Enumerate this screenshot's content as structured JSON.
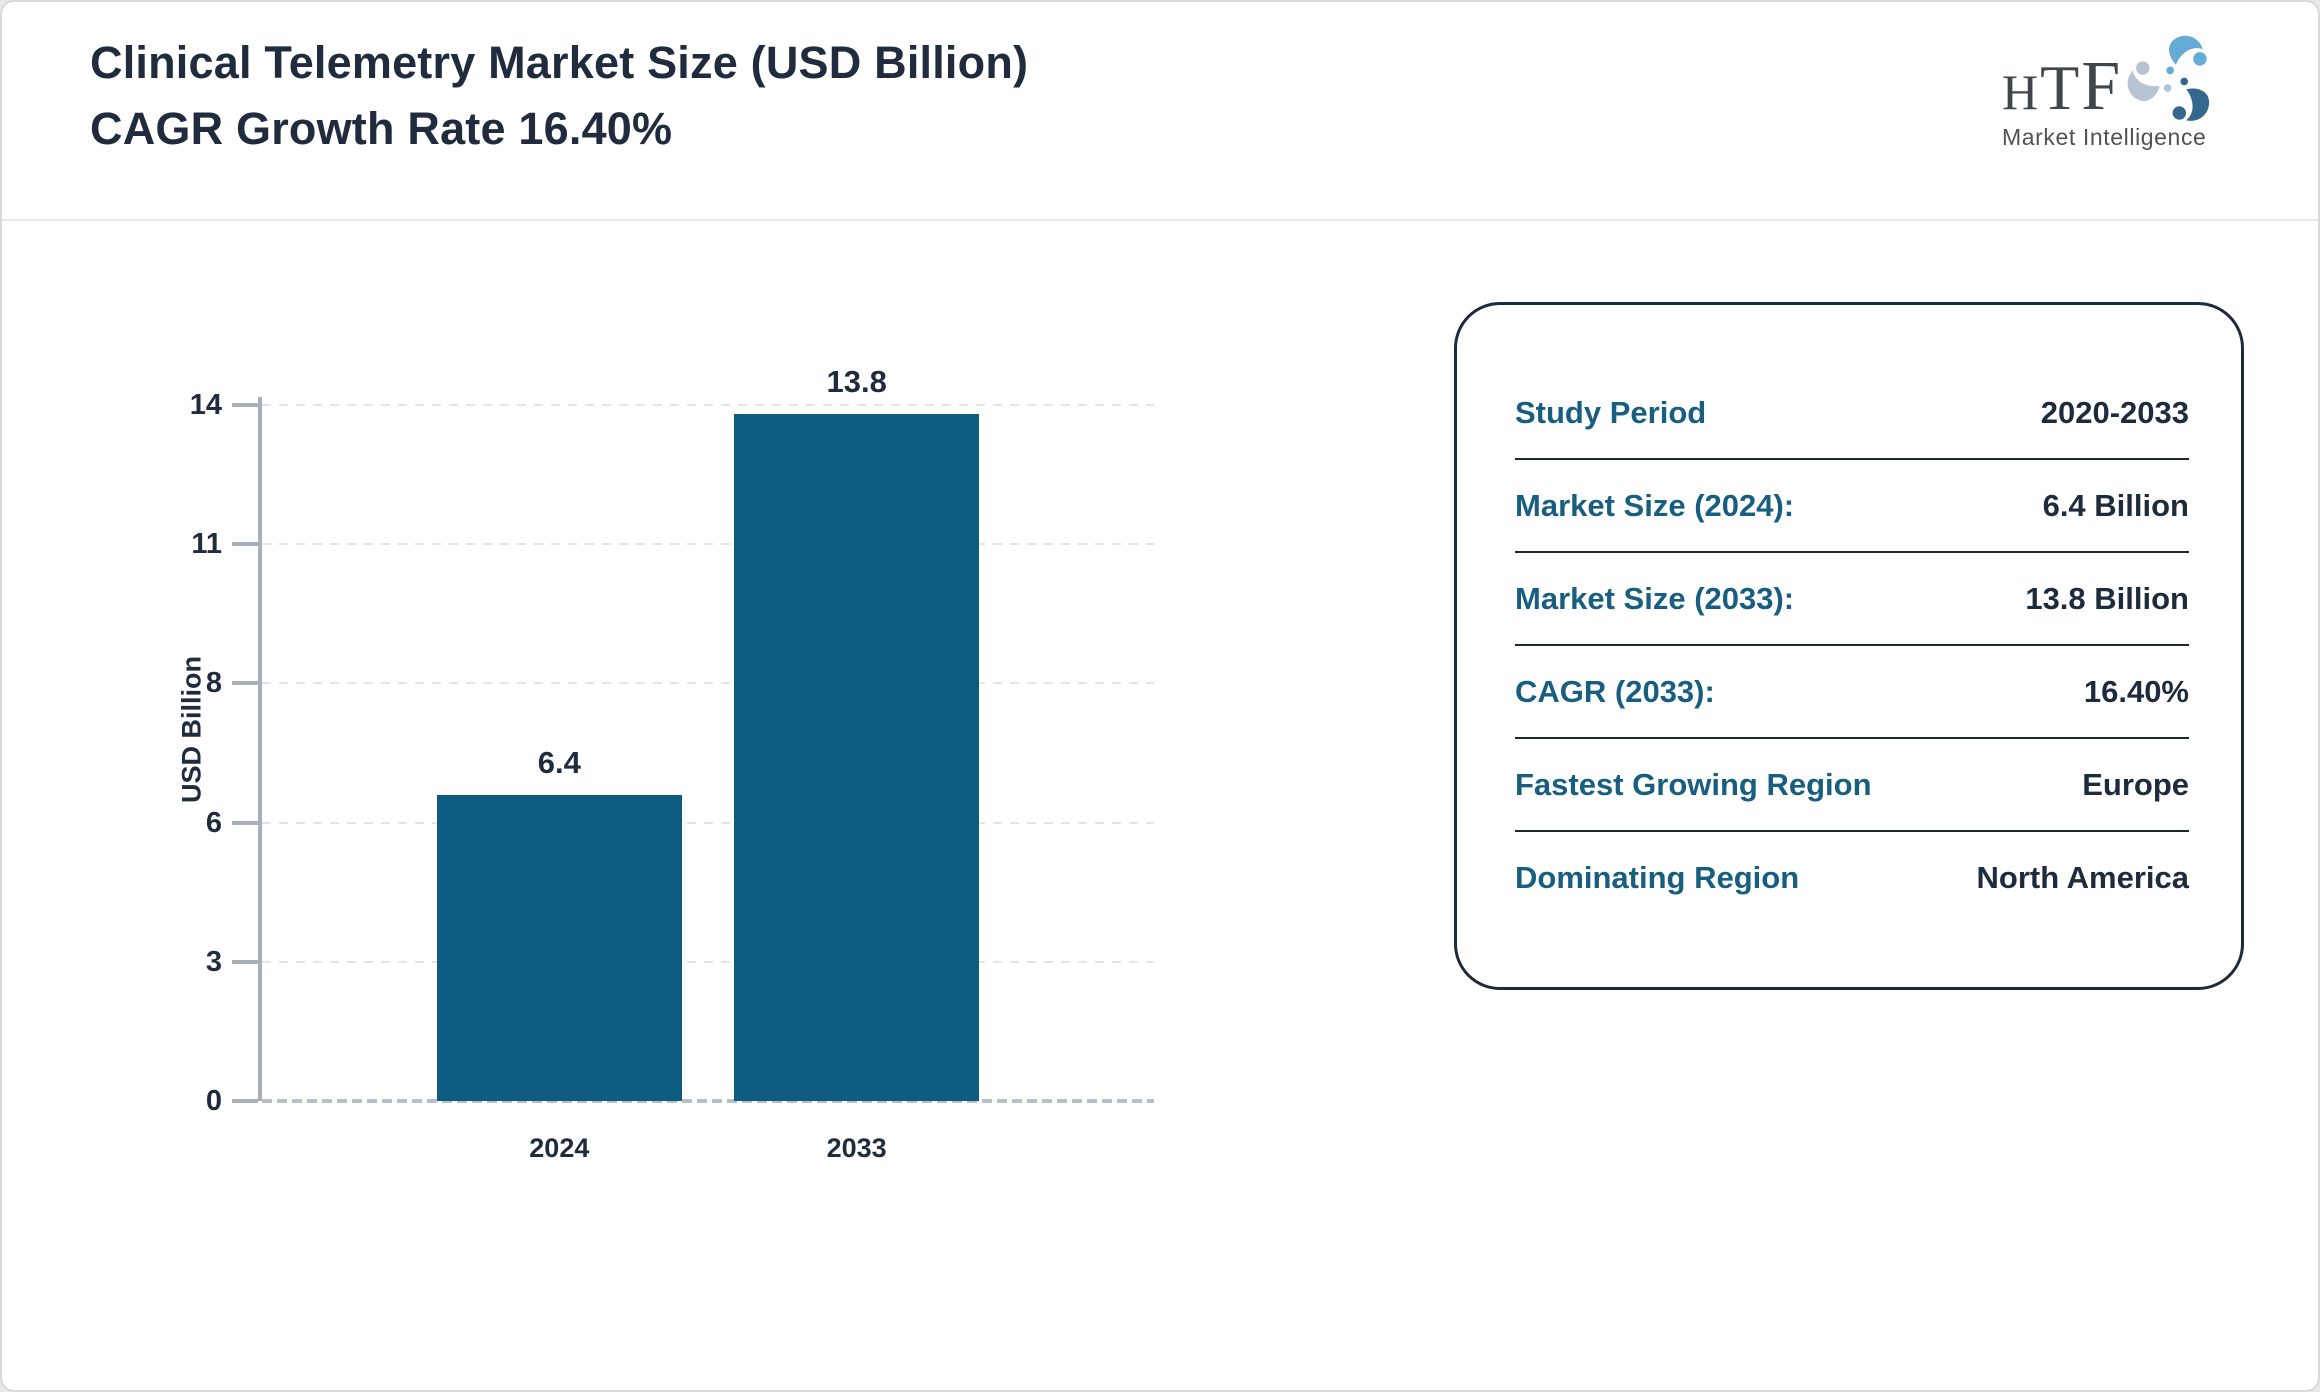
{
  "header": {
    "title_line1": "Clinical Telemetry Market Size (USD Billion)",
    "title_line2": "CAGR Growth Rate 16.40%",
    "logo": {
      "letters": [
        "H",
        "T",
        "F"
      ],
      "subtext": "Market Intelligence"
    }
  },
  "chart_data": {
    "type": "bar",
    "title": "Clinical Telemetry Market Size (USD Billion), CAGR Growth Rate 16.40%",
    "categories": [
      "2024",
      "2033"
    ],
    "values": [
      6.4,
      13.8
    ],
    "bar_labels": [
      "6.4",
      "13.8"
    ],
    "xlabel": "",
    "ylabel": "USD Billion",
    "yticks": [
      0,
      3,
      6,
      8,
      11,
      14
    ],
    "ylim": [
      0,
      14
    ],
    "grid": "horizontal-dashed",
    "legend": "none",
    "bar_color": "#0d5b80"
  },
  "info_panel": {
    "rows": [
      {
        "label": "Study Period",
        "value": "2020-2033"
      },
      {
        "label": "Market Size (2024):",
        "value": "6.4 Billion"
      },
      {
        "label": "Market Size (2033):",
        "value": "13.8 Billion"
      },
      {
        "label": "CAGR (2033):",
        "value": "16.40%"
      },
      {
        "label": "Fastest Growing Region",
        "value": "Europe"
      },
      {
        "label": "Dominating Region",
        "value": "North America"
      }
    ]
  },
  "colors": {
    "bar": "#0d5b80",
    "label_teal": "#175e80",
    "text_dark": "#202c3e",
    "axis": "#a9afba",
    "gridline": "#e3e4e7",
    "panel_border": "#1c2b3b",
    "logo_blue_light": "#64abd8",
    "logo_blue_pale": "#b5c3d2",
    "logo_blue_steel": "#36688f"
  }
}
